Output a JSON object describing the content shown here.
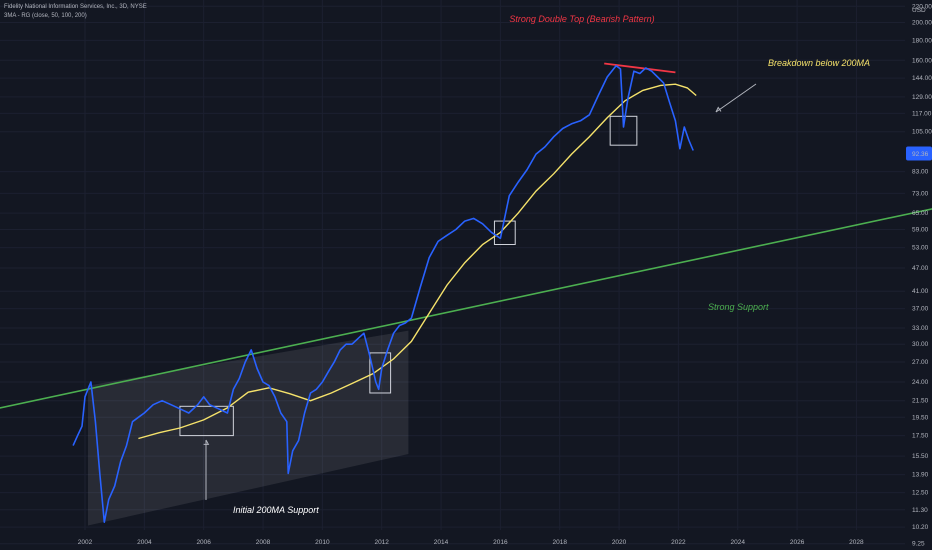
{
  "header": {
    "symbol_line": "Fidelity National Information Services, Inc., 3D, NYSE",
    "indicator_line": "3MA - RG (close, 50, 100, 200)"
  },
  "colors": {
    "background": "#131722",
    "price": "#2962ff",
    "ma200": "#f5e26b",
    "support": "#4caf50",
    "double_top": "#f23645",
    "annotation": "#f5e26b",
    "current_price_tag": "#2962ff"
  },
  "annotations": {
    "double_top": "Strong Double Top (Bearish Pattern)",
    "breakdown": "Breakdown below 200MA",
    "support": "Strong Support",
    "initial": "Initial 200MA Support"
  },
  "chart_data": {
    "type": "line",
    "x_axis_labels": [
      "2002",
      "2004",
      "2006",
      "2008",
      "2010",
      "2012",
      "2014",
      "2016",
      "2018",
      "2020",
      "2022",
      "2024",
      "2026",
      "2028"
    ],
    "y_axis_label": "USD",
    "y_scale": "log",
    "y_ticks": [
      9.25,
      10.2,
      11.3,
      12.5,
      13.9,
      15.5,
      17.5,
      19.5,
      21.5,
      24.0,
      27.0,
      30.0,
      33.0,
      37.0,
      41.0,
      47.0,
      53.0,
      59.0,
      65.0,
      73.0,
      83.0,
      105.0,
      117.0,
      129.0,
      144.0,
      160.0,
      180.0,
      200.0,
      220.0
    ],
    "y_tick_labels": [
      "9.25",
      "10.20",
      "11.30",
      "12.50",
      "13.90",
      "15.50",
      "17.50",
      "19.50",
      "21.50",
      "24.00",
      "27.00",
      "30.00",
      "33.00",
      "37.00",
      "41.00",
      "47.00",
      "53.00",
      "59.00",
      "65.00",
      "73.00",
      "83.00",
      "105.00",
      "117.00",
      "129.00",
      "144.00",
      "160.00",
      "180.00",
      "200.00",
      "220.00"
    ],
    "current_price": "92.36",
    "series": [
      {
        "x": [
          2001.6,
          2001.75,
          2001.9,
          2002.0,
          2002.2,
          2002.35,
          2002.5,
          2002.65,
          2002.8,
          2003.0,
          2003.2,
          2003.4,
          2003.6,
          2003.8,
          2004.0,
          2004.3,
          2004.6,
          2004.9,
          2005.2,
          2005.5,
          2005.8,
          2006.0,
          2006.2,
          2006.5,
          2006.8,
          2007.0,
          2007.2,
          2007.4,
          2007.6,
          2007.8,
          2008.0,
          2008.2,
          2008.4,
          2008.6,
          2008.8,
          2008.85,
          2009.0,
          2009.2,
          2009.4,
          2009.6,
          2009.8,
          2010.0,
          2010.2,
          2010.4,
          2010.6,
          2010.8,
          2011.0,
          2011.2,
          2011.4,
          2011.6,
          2011.8,
          2011.9,
          2012.0,
          2012.2,
          2012.4,
          2012.6,
          2012.8,
          2013.0,
          2013.3,
          2013.6,
          2013.9,
          2014.2,
          2014.5,
          2014.8,
          2015.1,
          2015.4,
          2015.7,
          2016.0,
          2016.3,
          2016.6,
          2016.9,
          2017.2,
          2017.5,
          2017.8,
          2018.1,
          2018.4,
          2018.7,
          2019.0,
          2019.3,
          2019.6,
          2019.9,
          2020.05,
          2020.15,
          2020.3,
          2020.5,
          2020.7,
          2020.9,
          2021.1,
          2021.3,
          2021.5,
          2021.7,
          2021.9,
          2022.05,
          2022.2,
          2022.35,
          2022.5
        ],
        "values": [
          16.5,
          17.5,
          18.5,
          22.0,
          24.0,
          19.0,
          14.0,
          10.5,
          12.0,
          13.0,
          15.0,
          16.5,
          19.0,
          19.5,
          20.0,
          21.0,
          21.5,
          21.0,
          20.5,
          20.0,
          21.0,
          22.0,
          21.0,
          20.5,
          20.0,
          23.0,
          24.5,
          27.0,
          29.0,
          26.0,
          24.0,
          23.5,
          22.0,
          20.0,
          19.0,
          14.0,
          16.0,
          17.0,
          20.0,
          22.5,
          23.0,
          24.0,
          25.5,
          27.0,
          29.0,
          30.0,
          30.0,
          31.0,
          32.0,
          28.0,
          24.0,
          23.0,
          26.0,
          29.0,
          32.0,
          33.5,
          34.0,
          35.0,
          42.0,
          50.0,
          55.0,
          57.0,
          59.0,
          62.0,
          63.0,
          61.0,
          58.0,
          56.0,
          72.0,
          78.0,
          84.0,
          92.0,
          96.0,
          102.0,
          107.0,
          110.0,
          112.0,
          116.0,
          130.0,
          145.0,
          155.0,
          152.0,
          108.0,
          128.0,
          150.0,
          148.0,
          153.0,
          150.0,
          145.0,
          140.0,
          125.0,
          112.0,
          95.0,
          108.0,
          100.0,
          94.0
        ]
      },
      {
        "x": [
          2003.8,
          2004.5,
          2005.2,
          2006.0,
          2006.8,
          2007.5,
          2008.2,
          2008.9,
          2009.6,
          2010.3,
          2011.0,
          2011.7,
          2012.4,
          2013.0,
          2013.6,
          2014.2,
          2014.8,
          2015.4,
          2016.0,
          2016.6,
          2017.2,
          2017.8,
          2018.4,
          2019.0,
          2019.6,
          2020.2,
          2020.8,
          2021.4,
          2021.9,
          2022.3,
          2022.6
        ],
        "values": [
          17.2,
          17.8,
          18.3,
          19.2,
          20.6,
          22.6,
          23.2,
          22.4,
          21.5,
          22.5,
          23.8,
          25.2,
          27.5,
          30.5,
          36.0,
          42.5,
          48.5,
          54.0,
          58.0,
          65.0,
          74.0,
          82.0,
          92.0,
          102.0,
          114.0,
          126.0,
          134.0,
          138.0,
          139.0,
          136.0,
          130.0
        ]
      }
    ]
  }
}
